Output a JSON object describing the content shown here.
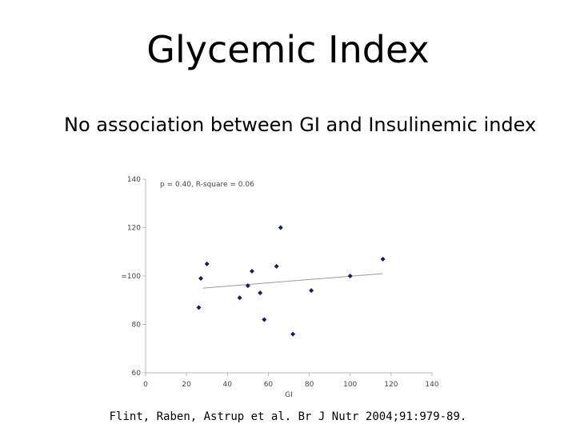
{
  "slide": {
    "title": "Glycemic Index",
    "subtitle": "No association between GI and Insulinemic index",
    "citation": "Flint, Raben, Astrup et al. Br J Nutr 2004;91:979-89."
  },
  "chart_data": {
    "type": "scatter",
    "title": "",
    "annotation": "p = 0.40, R-square = 0.06",
    "xlabel": "GI",
    "ylabel": "",
    "xlim": [
      0,
      140
    ],
    "ylim": [
      60,
      140
    ],
    "x_ticks": [
      0,
      20,
      40,
      60,
      80,
      100,
      120,
      140
    ],
    "y_ticks": [
      60,
      80,
      100,
      120,
      140
    ],
    "y_tick_labels": [
      "60",
      "80",
      "=100",
      "120",
      "140"
    ],
    "grid": false,
    "points": [
      {
        "x": 26,
        "y": 87
      },
      {
        "x": 27,
        "y": 99
      },
      {
        "x": 30,
        "y": 105
      },
      {
        "x": 46,
        "y": 91
      },
      {
        "x": 50,
        "y": 96
      },
      {
        "x": 52,
        "y": 102
      },
      {
        "x": 56,
        "y": 93
      },
      {
        "x": 58,
        "y": 82
      },
      {
        "x": 64,
        "y": 104
      },
      {
        "x": 66,
        "y": 120
      },
      {
        "x": 72,
        "y": 76
      },
      {
        "x": 81,
        "y": 94
      },
      {
        "x": 100,
        "y": 100
      },
      {
        "x": 116,
        "y": 107
      }
    ],
    "trendline": {
      "x": [
        28,
        116
      ],
      "y": [
        95,
        101
      ]
    },
    "colors": {
      "point": "#1a1a66",
      "trendline": "#9a9a9a",
      "axis": "#b8b8b8",
      "tick_text": "#444444"
    }
  }
}
